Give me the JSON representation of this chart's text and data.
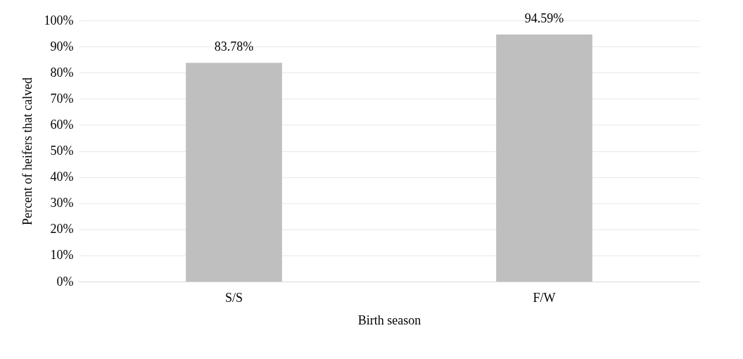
{
  "chart_data": {
    "type": "bar",
    "xlabel": "Birth season",
    "ylabel": "Percent of heifers that calved",
    "categories": [
      "S/S",
      "F/W"
    ],
    "values": [
      83.78,
      94.59
    ],
    "value_labels": [
      "83.78%",
      "94.59%"
    ],
    "color": "#bfbfbf",
    "ylim": [
      0,
      100
    ],
    "yticks": [
      {
        "value": 0,
        "label": "0%"
      },
      {
        "value": 10,
        "label": "10%"
      },
      {
        "value": 20,
        "label": "20%"
      },
      {
        "value": 30,
        "label": "30%"
      },
      {
        "value": 40,
        "label": "40%"
      },
      {
        "value": 50,
        "label": "50%"
      },
      {
        "value": 60,
        "label": "60%"
      },
      {
        "value": 70,
        "label": "70%"
      },
      {
        "value": 80,
        "label": "80%"
      },
      {
        "value": 90,
        "label": "90%"
      },
      {
        "value": 100,
        "label": "100%"
      }
    ],
    "grid": "y"
  }
}
